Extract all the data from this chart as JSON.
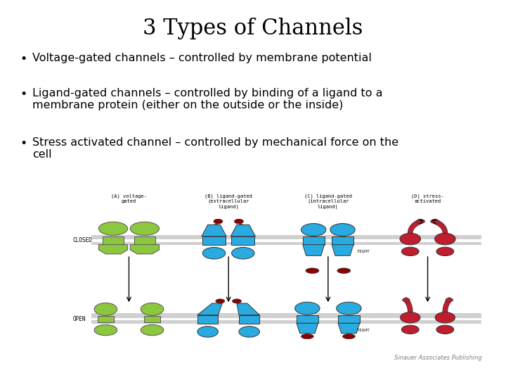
{
  "title": "3 Types of Channels",
  "title_fontsize": 22,
  "title_fontfamily": "DejaVu Serif",
  "bullet_points": [
    "Voltage-gated channels – controlled by membrane potential",
    "Ligand-gated channels – controlled by binding of a ligand to a\nmembrane protein (either on the outside or the inside)",
    "Stress activated channel – controlled by mechanical force on the\ncell"
  ],
  "bullet_fontsize": 11.5,
  "background_color": "#ffffff",
  "text_color": "#000000",
  "membrane_color": "#d0d0d0",
  "green_color": "#8dc63f",
  "blue_color": "#29abe2",
  "red_color": "#be1e2d",
  "dark_red_color": "#8b0000",
  "footer_text": "Sinauer Associates Publishing",
  "footer_fontsize": 6,
  "col_label_fontsize": 5.0,
  "row_label_fontsize": 5.5
}
